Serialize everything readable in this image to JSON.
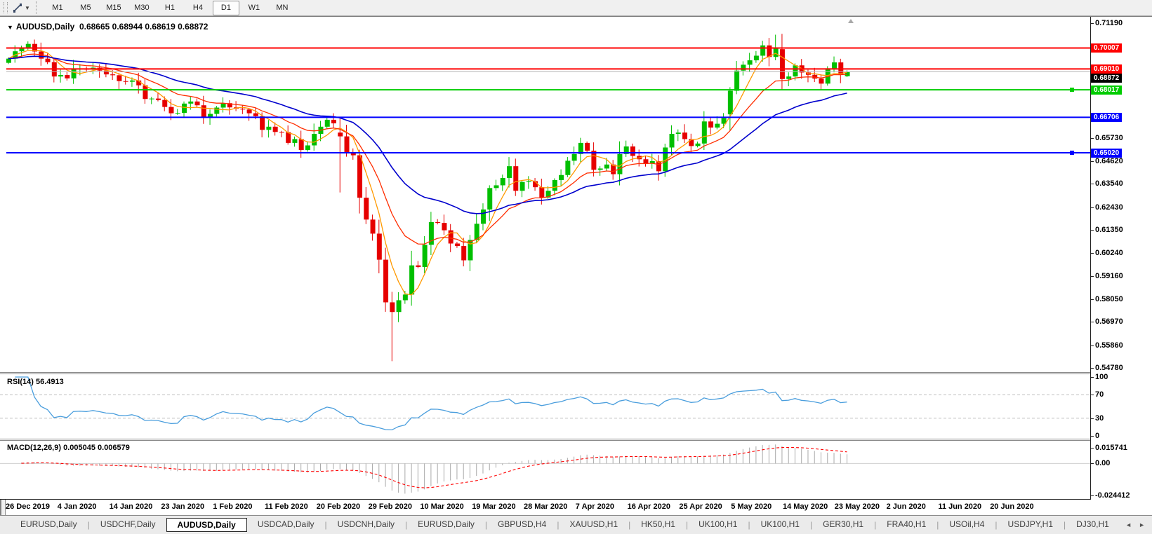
{
  "toolbar": {
    "timeframes": [
      "M1",
      "M5",
      "M15",
      "M30",
      "H1",
      "H4",
      "D1",
      "W1",
      "MN"
    ],
    "active_timeframe": "D1",
    "chart_tool_icon": "chart-tools-icon",
    "caret_icon": "dropdown-caret-icon"
  },
  "chart": {
    "title_symbol": "AUDUSD,Daily",
    "ohlc_text": "0.68665 0.68944 0.68619 0.68872",
    "collapse_caret": "▼",
    "colors": {
      "up": "#00bf00",
      "down": "#e60000",
      "ma_fast": "#ff9900",
      "ma_mid": "#ff2d00",
      "ma_slow": "#0000cd",
      "current_line": "#b8b8b8",
      "background": "#ffffff"
    },
    "axis_ticks": [
      "0.71190",
      "0.65730",
      "0.64620",
      "0.63540",
      "0.62430",
      "0.61350",
      "0.60240",
      "0.59160",
      "0.58050",
      "0.56970",
      "0.55860",
      "0.54780"
    ],
    "price_lines": [
      {
        "label": "0.70007",
        "price": 0.70007,
        "color": "#ff0000",
        "width": 2,
        "handle": false,
        "current": false
      },
      {
        "label": "0.69010",
        "price": 0.6901,
        "color": "#ff0000",
        "width": 2,
        "handle": false,
        "current": false
      },
      {
        "label": "0.68872",
        "price": 0.68872,
        "color": "#b8b8b8",
        "box": "#000000",
        "width": 1,
        "handle": false,
        "current": true
      },
      {
        "label": "0.68017",
        "price": 0.68017,
        "color": "#00cc00",
        "width": 2,
        "handle": true,
        "current": false
      },
      {
        "label": "0.66706",
        "price": 0.66706,
        "color": "#0000ff",
        "width": 2,
        "handle": false,
        "current": false
      },
      {
        "label": "0.65020",
        "price": 0.6502,
        "color": "#0000ff",
        "width": 2,
        "handle": true,
        "current": false
      }
    ],
    "dates": [
      "26 Dec 2019",
      "4 Jan 2020",
      "14 Jan 2020",
      "23 Jan 2020",
      "1 Feb 2020",
      "11 Feb 2020",
      "20 Feb 2020",
      "29 Feb 2020",
      "10 Mar 2020",
      "19 Mar 2020",
      "28 Mar 2020",
      "7 Apr 2020",
      "16 Apr 2020",
      "25 Apr 2020",
      "5 May 2020",
      "14 May 2020",
      "23 May 2020",
      "2 Jun 2020",
      "11 Jun 2020",
      "20 Jun 2020"
    ],
    "candles": {
      "type": "candlestick",
      "first_open": 0.693,
      "closes": [
        0.695,
        0.6985,
        0.7,
        0.702,
        0.6984,
        0.695,
        0.6933,
        0.6865,
        0.6872,
        0.6856,
        0.69,
        0.6903,
        0.6898,
        0.6907,
        0.6893,
        0.6875,
        0.6871,
        0.6843,
        0.684,
        0.6846,
        0.6823,
        0.6758,
        0.676,
        0.6753,
        0.672,
        0.669,
        0.6692,
        0.6736,
        0.6746,
        0.6728,
        0.6668,
        0.6687,
        0.6717,
        0.6738,
        0.6718,
        0.6712,
        0.6708,
        0.669,
        0.6676,
        0.6611,
        0.6626,
        0.6601,
        0.66,
        0.6549,
        0.6567,
        0.6515,
        0.6537,
        0.6592,
        0.6626,
        0.6659,
        0.6642,
        0.658,
        0.65,
        0.649,
        0.6288,
        0.6184,
        0.6117,
        0.5993,
        0.579,
        0.5744,
        0.58,
        0.5827,
        0.5966,
        0.5958,
        0.6064,
        0.6172,
        0.6168,
        0.6133,
        0.607,
        0.6058,
        0.599,
        0.6087,
        0.6164,
        0.6232,
        0.6334,
        0.6347,
        0.6382,
        0.6438,
        0.6321,
        0.6363,
        0.6367,
        0.6338,
        0.6289,
        0.6321,
        0.6372,
        0.6396,
        0.6464,
        0.6496,
        0.6549,
        0.6512,
        0.6421,
        0.6427,
        0.6446,
        0.64,
        0.6496,
        0.6532,
        0.6487,
        0.6471,
        0.645,
        0.6462,
        0.6414,
        0.6527,
        0.6592,
        0.6598,
        0.6567,
        0.6534,
        0.6546,
        0.6651,
        0.6622,
        0.664,
        0.6667,
        0.6797,
        0.6893,
        0.6921,
        0.6942,
        0.6964,
        0.7013,
        0.6958,
        0.7,
        0.6853,
        0.6865,
        0.6918,
        0.6884,
        0.6873,
        0.6855,
        0.6831,
        0.6904,
        0.6932,
        0.6872,
        0.68872
      ],
      "overrides": {
        "3": {
          "h": 0.7032
        },
        "51": {
          "o": 0.6598,
          "l": 0.6313
        },
        "54": {
          "l": 0.6213
        },
        "58": {
          "l": 0.5745
        },
        "59": {
          "h": 0.584,
          "l": 0.551
        },
        "64": {
          "h": 0.6105
        },
        "111": {
          "o": 0.6685
        },
        "116": {
          "h": 0.7035
        },
        "118": {
          "h": 0.7064
        },
        "119": {
          "o": 0.6995
        },
        "129": {
          "o": 0.68665,
          "h": 0.68944,
          "l": 0.68619
        }
      },
      "moving_averages": [
        {
          "name": "fast",
          "method": "sma",
          "period": 5
        },
        {
          "name": "mid",
          "method": "ema",
          "period": 13
        },
        {
          "name": "slow",
          "method": "ema",
          "period": 30
        }
      ]
    }
  },
  "rsi": {
    "label": "RSI(14) 56.4913",
    "period": 14,
    "levels": [
      "100",
      "70",
      "30",
      "0"
    ],
    "level_values": [
      100,
      70,
      30,
      0
    ],
    "line_color": "#4a9edd",
    "level_line_color": "#bdbdbd"
  },
  "macd": {
    "label": "MACD(12,26,9) 0.005045 0.006579",
    "fast": 12,
    "slow": 26,
    "signal": 9,
    "levels": [
      "0.015741",
      "0.00",
      "-0.024412"
    ],
    "hist_color": "#a9a9a9",
    "signal_color": "#ff0000"
  },
  "tabs": {
    "items": [
      "EURUSD,Daily",
      "USDCHF,Daily",
      "AUDUSD,Daily",
      "USDCAD,Daily",
      "USDCNH,Daily",
      "EURUSD,Daily",
      "GBPUSD,H4",
      "XAUUSD,H1",
      "HK50,H1",
      "UK100,H1",
      "UK100,H1",
      "GER30,H1",
      "FRA40,H1",
      "USOil,H4",
      "USDJPY,H1",
      "DJ30,H1"
    ],
    "active_index": 2,
    "scroll_left": "◄",
    "scroll_right": "►"
  }
}
